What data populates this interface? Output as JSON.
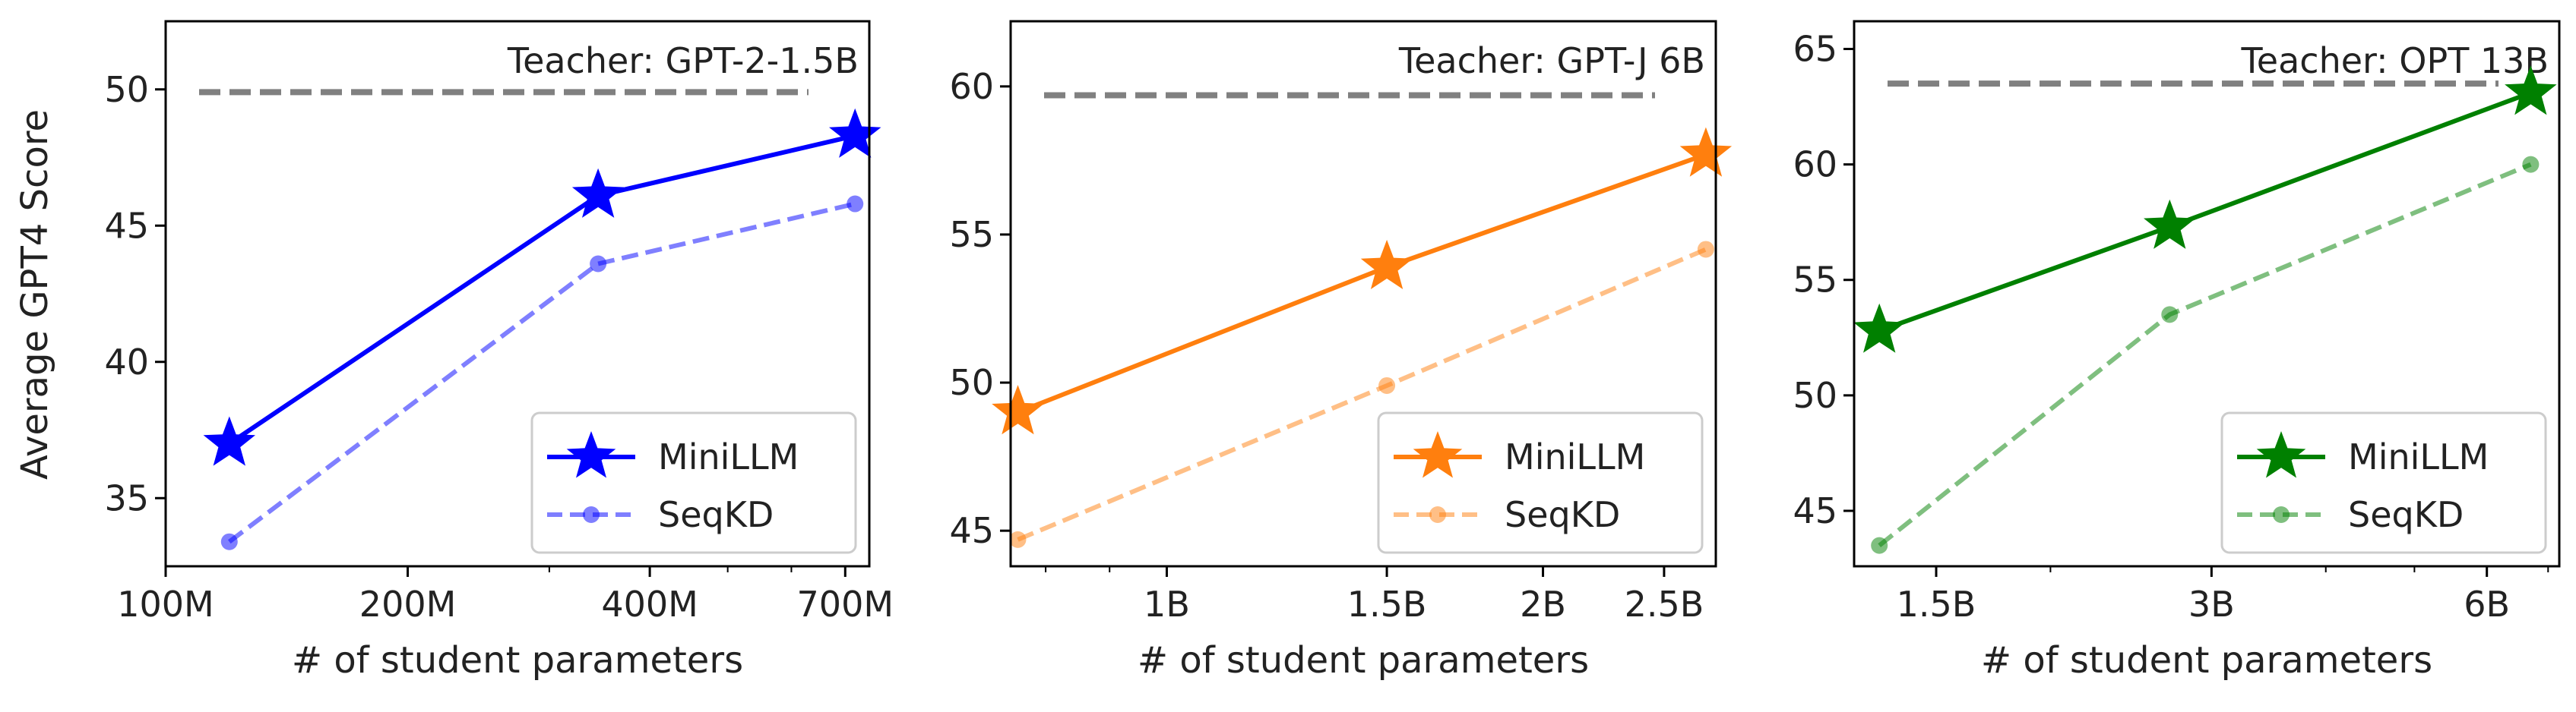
{
  "figure": {
    "ylabel": "Average GPT4 Score",
    "xlabel": "# of student parameters"
  },
  "legend": {
    "minillm": "MiniLLM",
    "seqkd": "SeqKD"
  },
  "chart_data": [
    {
      "type": "line",
      "teacher": {
        "label": "Teacher: GPT-2-1.5B",
        "value": 49.9
      },
      "color": "#0000ff",
      "x_scale": "log",
      "xlim": [
        100,
        750
      ],
      "x_ticks": [
        {
          "value": 100,
          "label": "100M"
        },
        {
          "value": 200,
          "label": "200M"
        },
        {
          "value": 400,
          "label": "400M"
        },
        {
          "value": 700,
          "label": "700M"
        }
      ],
      "x_minor_ticks": [
        300,
        500,
        600
      ],
      "ylim": [
        32.5,
        52.5
      ],
      "y_ticks": [
        35,
        40,
        45,
        50
      ],
      "series": [
        {
          "name": "MiniLLM",
          "x": [
            120,
            345,
            720
          ],
          "values": [
            37.0,
            46.1,
            48.3
          ]
        },
        {
          "name": "SeqKD",
          "x": [
            120,
            345,
            720
          ],
          "values": [
            33.4,
            43.6,
            45.8
          ]
        }
      ]
    },
    {
      "type": "line",
      "teacher": {
        "label": "Teacher: GPT-J 6B",
        "value": 59.7
      },
      "color": "#ff7f0e",
      "x_scale": "log",
      "xlim": [
        0.75,
        2.75
      ],
      "x_ticks": [
        {
          "value": 1,
          "label": "1B"
        },
        {
          "value": 1.5,
          "label": "1.5B"
        },
        {
          "value": 2,
          "label": "2B"
        },
        {
          "value": 2.5,
          "label": "2.5B"
        }
      ],
      "x_minor_ticks": [
        0.8,
        0.9
      ],
      "ylim": [
        43.8,
        62.2
      ],
      "y_ticks": [
        45,
        50,
        55,
        60
      ],
      "series": [
        {
          "name": "MiniLLM",
          "x": [
            0.76,
            1.5,
            2.7
          ],
          "values": [
            49.0,
            53.9,
            57.7
          ]
        },
        {
          "name": "SeqKD",
          "x": [
            0.76,
            1.5,
            2.7
          ],
          "values": [
            44.7,
            49.9,
            54.5
          ]
        }
      ]
    },
    {
      "type": "line",
      "teacher": {
        "label": "Teacher: OPT 13B",
        "value": 63.5
      },
      "color": "#008000",
      "x_scale": "log",
      "xlim": [
        1.22,
        7.2
      ],
      "x_ticks": [
        {
          "value": 1.5,
          "label": "1.5B"
        },
        {
          "value": 3,
          "label": "3B"
        },
        {
          "value": 6,
          "label": "6B"
        }
      ],
      "x_minor_ticks": [
        2,
        4,
        5,
        7
      ],
      "ylim": [
        42.6,
        66.2
      ],
      "y_ticks": [
        45,
        50,
        55,
        60,
        65
      ],
      "series": [
        {
          "name": "MiniLLM",
          "x": [
            1.3,
            2.7,
            6.7
          ],
          "values": [
            52.8,
            57.3,
            63.1
          ]
        },
        {
          "name": "SeqKD",
          "x": [
            1.3,
            2.7,
            6.7
          ],
          "values": [
            43.5,
            53.5,
            60.0
          ]
        }
      ]
    }
  ]
}
